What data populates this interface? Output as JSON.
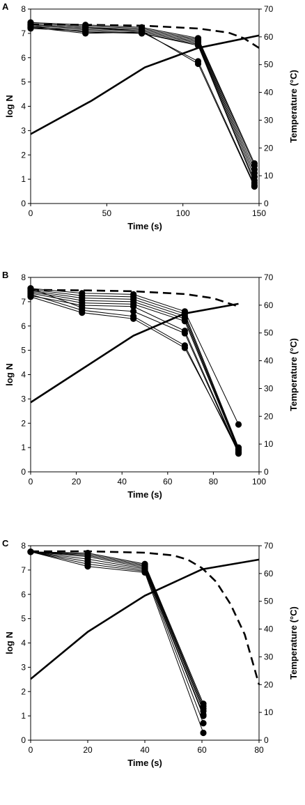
{
  "chart_data": [
    {
      "type": "line",
      "panel_label": "A",
      "xlabel": "Time (s)",
      "ylabel": "log N",
      "y2label": "Temperature (°C)",
      "xlim": [
        0,
        150
      ],
      "ylim": [
        0,
        8
      ],
      "y2lim": [
        0,
        70
      ],
      "xticks": [
        0,
        50,
        100,
        150
      ],
      "yticks": [
        0,
        1,
        2,
        3,
        4,
        5,
        6,
        7,
        8
      ],
      "y2ticks": [
        0,
        10,
        20,
        30,
        40,
        50,
        60,
        70
      ],
      "x": [
        0,
        36,
        73,
        110,
        147
      ],
      "series": [
        {
          "values": [
            7.45,
            7.35,
            7.25,
            6.8,
            1.65
          ]
        },
        {
          "values": [
            7.4,
            7.3,
            7.2,
            6.75,
            1.55
          ]
        },
        {
          "values": [
            7.35,
            7.25,
            7.15,
            6.7,
            1.4
          ]
        },
        {
          "values": [
            7.3,
            7.2,
            7.1,
            6.65,
            1.25
          ]
        },
        {
          "values": [
            7.25,
            7.15,
            7.05,
            6.6,
            1.1
          ]
        },
        {
          "values": [
            7.2,
            7.1,
            7.0,
            6.55,
            0.95
          ]
        },
        {
          "values": [
            7.3,
            7.05,
            7.0,
            6.5,
            0.85
          ]
        },
        {
          "values": [
            7.25,
            7.0,
            7.05,
            5.85,
            0.75
          ]
        },
        {
          "values": [
            7.35,
            7.25,
            7.1,
            5.75,
            0.7
          ]
        }
      ],
      "temperature": {
        "x": [
          0,
          40,
          75,
          110,
          150
        ],
        "values": [
          25,
          37,
          49,
          56,
          60.5
        ]
      },
      "dashed": {
        "x": [
          0,
          40,
          75,
          110,
          130,
          140,
          150
        ],
        "values": [
          64.5,
          64.3,
          64.0,
          63.0,
          61.5,
          59.5,
          56.0
        ]
      }
    },
    {
      "type": "line",
      "panel_label": "B",
      "xlabel": "Time (s)",
      "ylabel": "log N",
      "y2label": "Temperature (°C)",
      "xlim": [
        0,
        100
      ],
      "ylim": [
        0,
        8
      ],
      "y2lim": [
        0,
        70
      ],
      "xticks": [
        0,
        20,
        40,
        60,
        80,
        100
      ],
      "yticks": [
        0,
        1,
        2,
        3,
        4,
        5,
        6,
        7,
        8
      ],
      "y2ticks": [
        0,
        10,
        20,
        30,
        40,
        50,
        60,
        70
      ],
      "x": [
        0,
        22.5,
        45,
        67.5,
        91
      ],
      "series": [
        {
          "values": [
            7.55,
            7.35,
            7.3,
            6.6,
            1.95
          ]
        },
        {
          "values": [
            7.5,
            7.25,
            7.2,
            6.5,
            1.0
          ]
        },
        {
          "values": [
            7.45,
            7.15,
            7.1,
            6.4,
            0.95
          ]
        },
        {
          "values": [
            7.4,
            7.05,
            7.0,
            6.3,
            0.9
          ]
        },
        {
          "values": [
            7.35,
            6.95,
            6.9,
            6.2,
            0.85
          ]
        },
        {
          "values": [
            7.25,
            6.85,
            6.8,
            5.8,
            0.8
          ]
        },
        {
          "values": [
            7.55,
            6.75,
            6.6,
            5.7,
            0.75
          ]
        },
        {
          "values": [
            7.3,
            6.65,
            6.4,
            5.2,
            0.8
          ]
        },
        {
          "values": [
            7.2,
            6.55,
            6.3,
            5.1,
            0.9
          ]
        }
      ],
      "temperature": {
        "x": [
          0,
          22.5,
          45,
          67.5,
          91
        ],
        "values": [
          25,
          37,
          49,
          57,
          60.5
        ]
      },
      "dashed": {
        "x": [
          0,
          25,
          45,
          67.5,
          80,
          91
        ],
        "values": [
          65.5,
          65.3,
          65.0,
          64.0,
          62.5,
          59.5
        ]
      }
    },
    {
      "type": "line",
      "panel_label": "C",
      "xlabel": "Time (s)",
      "ylabel": "log N",
      "y2label": "Temperature (°C)",
      "xlim": [
        0,
        80
      ],
      "ylim": [
        0,
        8
      ],
      "y2lim": [
        0,
        70
      ],
      "xticks": [
        0,
        20,
        40,
        60,
        80
      ],
      "yticks": [
        0,
        1,
        2,
        3,
        4,
        5,
        6,
        7,
        8
      ],
      "y2ticks": [
        0,
        10,
        20,
        30,
        40,
        50,
        60,
        70
      ],
      "x": [
        0,
        20,
        40,
        60.5
      ],
      "series": [
        {
          "values": [
            7.75,
            7.7,
            7.25,
            1.5
          ]
        },
        {
          "values": [
            7.75,
            7.65,
            7.2,
            1.4
          ]
        },
        {
          "values": [
            7.75,
            7.6,
            7.15,
            1.3
          ]
        },
        {
          "values": [
            7.75,
            7.55,
            7.1,
            1.2
          ]
        },
        {
          "values": [
            7.75,
            7.45,
            7.05,
            1.05
          ]
        },
        {
          "values": [
            7.75,
            7.35,
            7.0,
            1.0
          ]
        },
        {
          "values": [
            7.75,
            7.25,
            6.95,
            0.7
          ]
        },
        {
          "values": [
            7.75,
            7.15,
            6.9,
            0.3
          ]
        }
      ],
      "temperature": {
        "x": [
          0,
          20,
          40,
          60,
          80
        ],
        "values": [
          22,
          39,
          52,
          61.5,
          65
        ]
      },
      "dashed": {
        "x": [
          0,
          20,
          40,
          50,
          55,
          60,
          65,
          70,
          75,
          80
        ],
        "values": [
          68,
          68,
          67.5,
          66.5,
          65,
          62,
          57,
          49,
          38,
          20
        ]
      }
    }
  ]
}
